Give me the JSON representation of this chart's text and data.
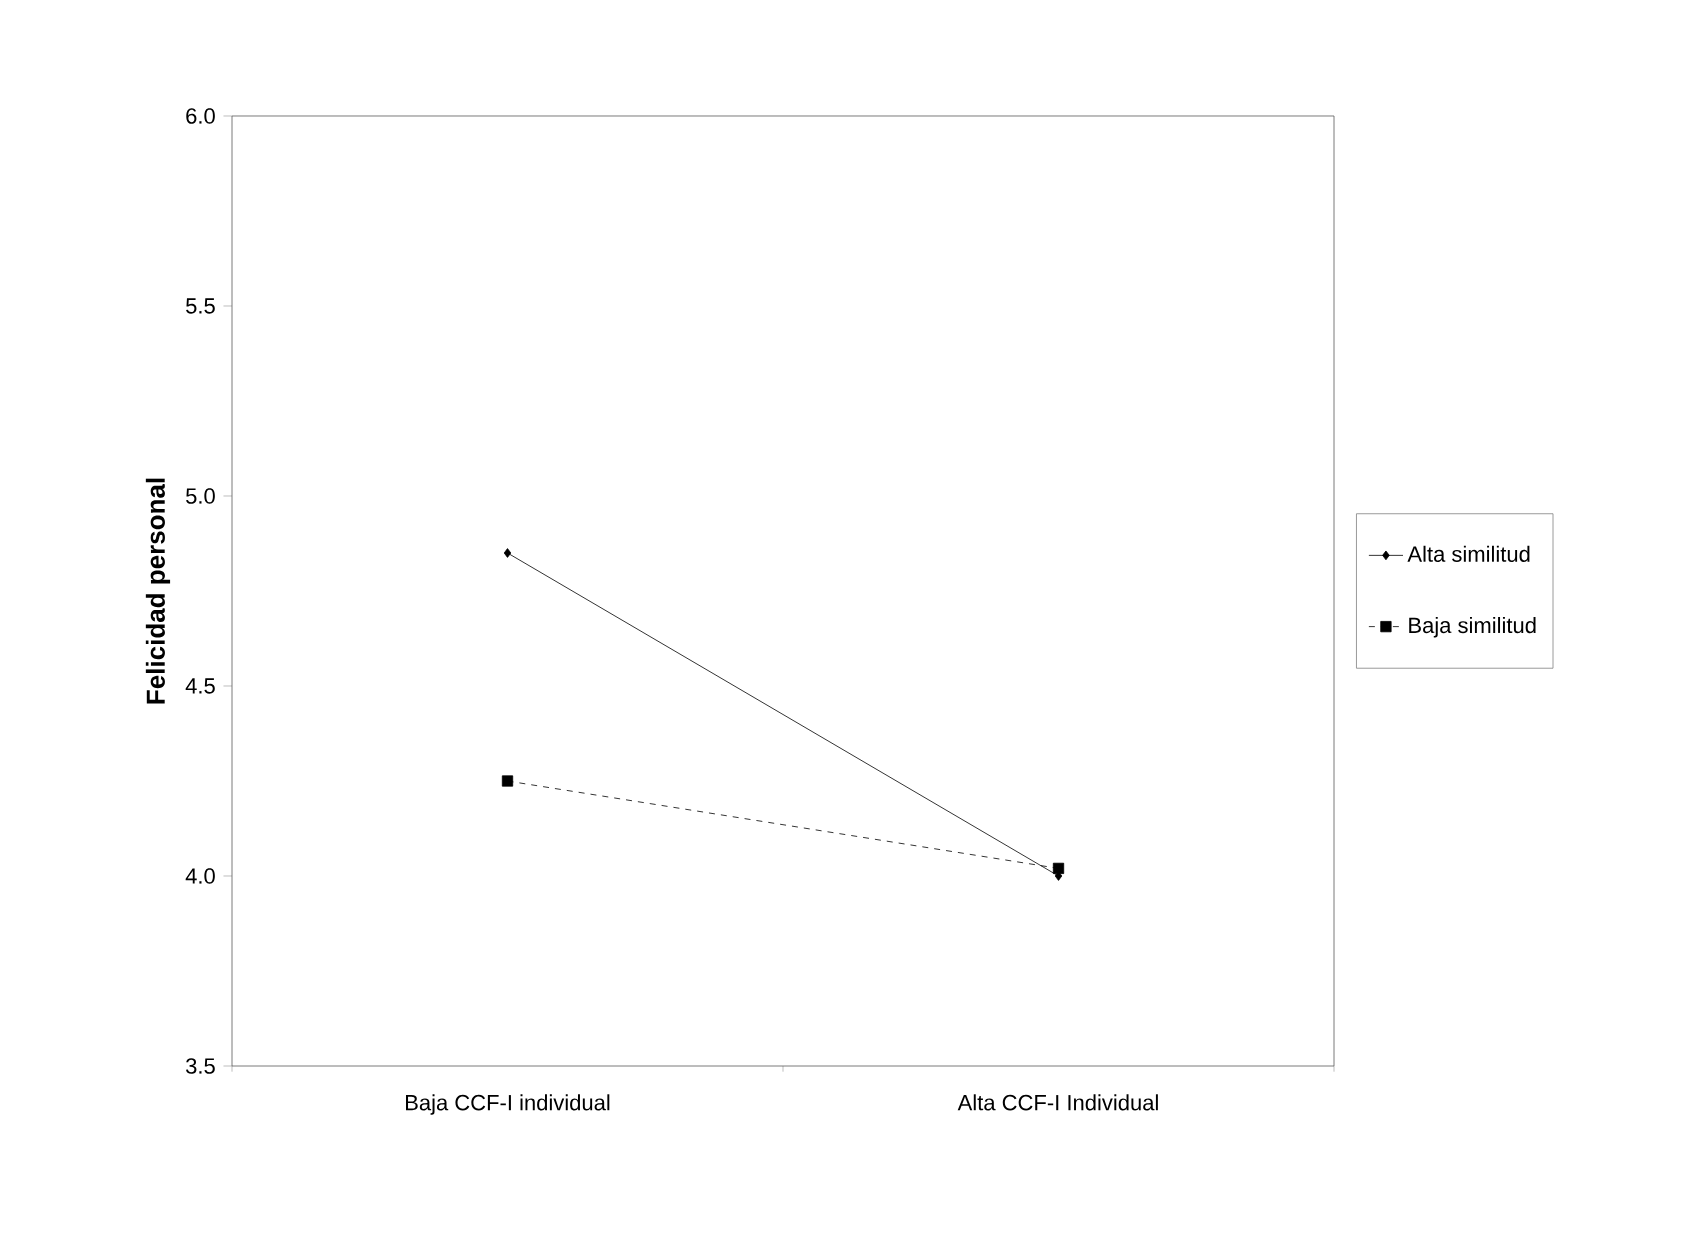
{
  "chart_data": {
    "type": "line",
    "ylabel": "Felicidad personal",
    "categories": [
      "Baja CCF-I individual",
      "Alta CCF-I Individual"
    ],
    "series": [
      {
        "name": "Alta similitud",
        "color": "#000000",
        "values": [
          4.85,
          4.0
        ],
        "marker": "diamond",
        "line_style": "solid"
      },
      {
        "name": "Baja similitud",
        "color": "#000000",
        "values": [
          4.25,
          4.02
        ],
        "marker": "square",
        "line_style": "dashed"
      }
    ],
    "ylim": [
      3.5,
      6.0
    ],
    "yticks": [
      3.5,
      {
        "value": 4.0,
        "label": "4.0"
      },
      4.5,
      {
        "value": 5.0,
        "label": "5.0"
      },
      5.5,
      {
        "value": 6.0,
        "label": "6.0"
      }
    ],
    "grid": false,
    "legend": "right"
  }
}
